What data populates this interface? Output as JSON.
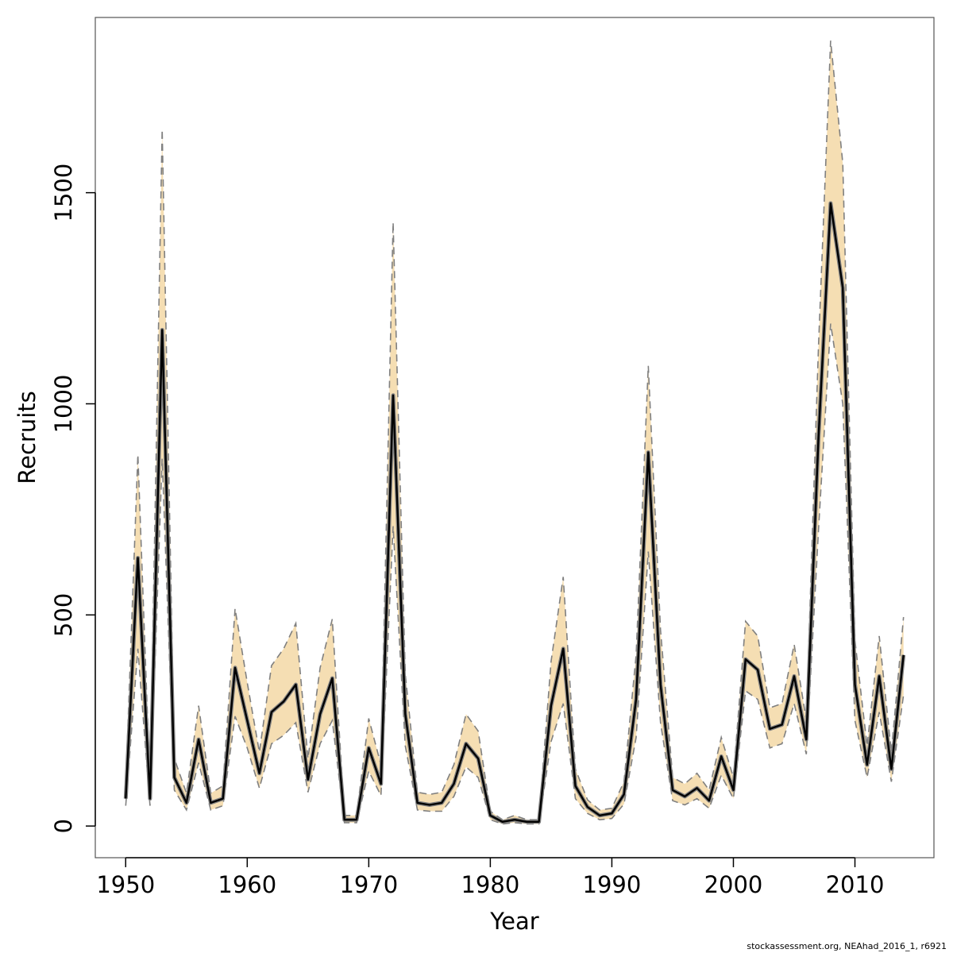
{
  "chart_data": {
    "type": "line",
    "title": "",
    "xlabel": "Year",
    "ylabel": "Recruits",
    "xlim": [
      1947.5,
      2016.5
    ],
    "ylim": [
      -75,
      1915
    ],
    "xticks": [
      1950,
      1960,
      1970,
      1980,
      1990,
      2000,
      2010
    ],
    "yticks": [
      0,
      500,
      1000,
      1500
    ],
    "grid": false,
    "legend": "none",
    "colors": {
      "ci_fill": "#f5deb3",
      "ci_line": "#808080",
      "estimate": "#000000",
      "axis": "#000000",
      "box": "#555555"
    },
    "x": [
      1950,
      1951,
      1952,
      1953,
      1954,
      1955,
      1956,
      1957,
      1958,
      1959,
      1960,
      1961,
      1962,
      1963,
      1964,
      1965,
      1966,
      1967,
      1968,
      1969,
      1970,
      1971,
      1972,
      1973,
      1974,
      1975,
      1976,
      1977,
      1978,
      1979,
      1980,
      1981,
      1982,
      1983,
      1984,
      1985,
      1986,
      1987,
      1988,
      1989,
      1990,
      1991,
      1992,
      1993,
      1994,
      1995,
      1996,
      1997,
      1998,
      1999,
      2000,
      2001,
      2002,
      2003,
      2004,
      2005,
      2006,
      2007,
      2008,
      2009,
      2010,
      2011,
      2012,
      2013,
      2014
    ],
    "series": [
      {
        "role": "estimate",
        "values": [
          65,
          635,
          65,
          1175,
          115,
          55,
          205,
          55,
          65,
          375,
          250,
          125,
          270,
          295,
          335,
          110,
          265,
          350,
          15,
          15,
          185,
          100,
          1020,
          265,
          55,
          50,
          55,
          100,
          195,
          160,
          25,
          10,
          15,
          10,
          10,
          285,
          420,
          95,
          45,
          25,
          30,
          75,
          300,
          885,
          335,
          85,
          70,
          90,
          60,
          165,
          85,
          395,
          370,
          230,
          240,
          355,
          205,
          920,
          1475,
          1275,
          335,
          145,
          355,
          135,
          405
        ]
      },
      {
        "role": "lower-ci",
        "values": [
          48,
          420,
          48,
          870,
          85,
          38,
          150,
          38,
          48,
          260,
          185,
          90,
          195,
          215,
          245,
          80,
          195,
          250,
          8,
          8,
          130,
          72,
          710,
          190,
          38,
          35,
          35,
          70,
          140,
          115,
          15,
          5,
          8,
          5,
          5,
          200,
          290,
          65,
          30,
          15,
          18,
          52,
          210,
          650,
          245,
          60,
          50,
          65,
          42,
          120,
          65,
          320,
          300,
          185,
          195,
          290,
          170,
          700,
          1190,
          1000,
          250,
          115,
          270,
          105,
          310
        ]
      },
      {
        "role": "upper-ci",
        "values": [
          95,
          880,
          95,
          1650,
          160,
          78,
          285,
          78,
          95,
          515,
          340,
          175,
          380,
          420,
          480,
          160,
          375,
          490,
          25,
          25,
          255,
          145,
          1430,
          360,
          80,
          75,
          80,
          145,
          265,
          225,
          35,
          15,
          25,
          15,
          15,
          390,
          590,
          135,
          62,
          38,
          42,
          105,
          405,
          1090,
          465,
          115,
          100,
          125,
          85,
          210,
          115,
          485,
          450,
          280,
          290,
          430,
          250,
          1135,
          1860,
          1570,
          440,
          190,
          450,
          175,
          495
        ]
      }
    ]
  },
  "footer": {
    "credit": "stockassessment.org, NEAhad_2016_1, r6921"
  }
}
